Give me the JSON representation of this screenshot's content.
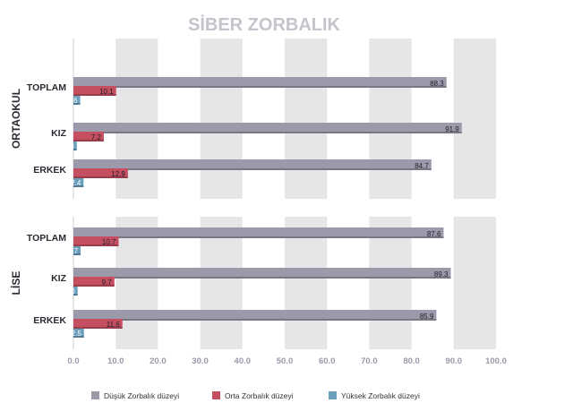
{
  "chart_data": {
    "type": "bar",
    "orientation": "horizontal",
    "title": "SİBER ZORBALIK",
    "xlim": [
      0,
      100
    ],
    "x_ticks": [
      "0.0",
      "10.0",
      "20.0",
      "30.0",
      "40.0",
      "50.0",
      "60.0",
      "70.0",
      "80.0",
      "90.0",
      "100.0"
    ],
    "grid": "alternating vertical bands",
    "legend_position": "bottom",
    "series": [
      {
        "name": "Düşük Zorbalık düzeyi",
        "color": "#9a9aab"
      },
      {
        "name": "Orta Zorbalık düzeyi",
        "color": "#c54f60"
      },
      {
        "name": "Yüksek Zorbalık düzeyi",
        "color": "#6a9fbd"
      }
    ],
    "groups": [
      {
        "label": "ORTAOKUL",
        "categories": [
          {
            "label": "TOPLAM",
            "values": [
              88.3,
              10.1,
              1.6
            ],
            "labels": [
              "88.3",
              "10.1",
              "1.6"
            ]
          },
          {
            "label": "KIZ",
            "values": [
              91.9,
              7.2,
              0.8
            ],
            "labels": [
              "91.9",
              "7.2",
              "0.8"
            ]
          },
          {
            "label": "ERKEK",
            "values": [
              84.7,
              12.9,
              2.4
            ],
            "labels": [
              "84.7",
              "12.9",
              "2.4"
            ]
          }
        ]
      },
      {
        "label": "LİSE",
        "categories": [
          {
            "label": "TOPLAM",
            "values": [
              87.6,
              10.7,
              1.7
            ],
            "labels": [
              "87.6",
              "10.7",
              "1.7"
            ]
          },
          {
            "label": "KIZ",
            "values": [
              89.3,
              9.7,
              1.0
            ],
            "labels": [
              "89.3",
              "9.7",
              "1.0"
            ]
          },
          {
            "label": "ERKEK",
            "values": [
              85.9,
              11.6,
              2.5
            ],
            "labels": [
              "85.9",
              "11.6",
              "2.5"
            ]
          }
        ]
      }
    ]
  }
}
